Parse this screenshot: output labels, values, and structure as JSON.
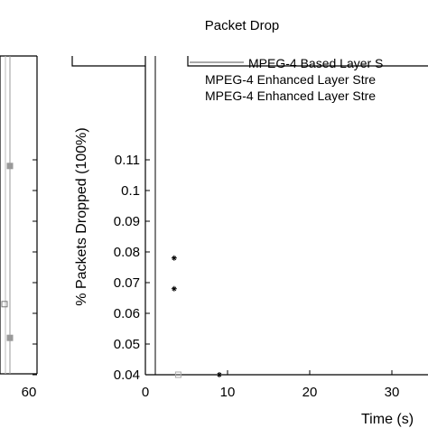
{
  "chart_data": [
    {
      "type": "line",
      "title": "",
      "xlabel": "",
      "ylabel": "",
      "x_ticks": [
        "60"
      ],
      "series": [
        {
          "color": "#999999",
          "marker": "square",
          "points": [
            {
              "x": 60,
              "y": 0.108
            },
            {
              "x": 60,
              "y": 0.052
            }
          ]
        },
        {
          "color": "#777777",
          "marker": "square",
          "points": [
            {
              "x": 60,
              "y": 0.063
            }
          ]
        }
      ]
    },
    {
      "type": "scatter",
      "title": "Packet Drop",
      "xlabel": "Time (s)",
      "ylabel": "% Packets Dropped (100%)",
      "xlim": [
        0,
        35
      ],
      "ylim": [
        0.04,
        0.12
      ],
      "x_ticks": [
        "0",
        "10",
        "20",
        "30"
      ],
      "y_ticks": [
        "0.04",
        "0.05",
        "0.06",
        "0.07",
        "0.08",
        "0.09",
        "0.1",
        "0.11"
      ],
      "grid": false,
      "legend_position": "top-right",
      "series": [
        {
          "name": "MPEG-4 Based Layer S",
          "color": "#555555",
          "marker": "dash",
          "points": [
            {
              "x": 4,
              "y": 0.04
            }
          ]
        },
        {
          "name": "MPEG-4 Enhanced Layer Stre",
          "color": "#000000",
          "marker": "star",
          "points": [
            {
              "x": 9,
              "y": 0.04
            },
            {
              "x": 3.5,
              "y": 0.078
            },
            {
              "x": 3.5,
              "y": 0.068
            }
          ]
        },
        {
          "name": "MPEG-4 Enhanced Layer Stre",
          "color": "#aaaaaa",
          "marker": "square",
          "points": [
            {
              "x": 4,
              "y": 0.04
            }
          ]
        }
      ]
    }
  ]
}
